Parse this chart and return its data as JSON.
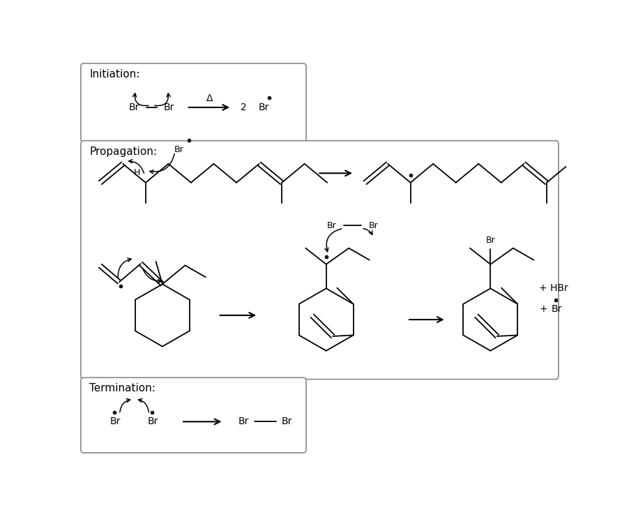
{
  "bg_color": "#ffffff",
  "init_label": "Initiation:",
  "prop_label": "Propagation:",
  "term_label": "Termination:",
  "figsize": [
    9.02,
    7.31
  ],
  "dpi": 100
}
